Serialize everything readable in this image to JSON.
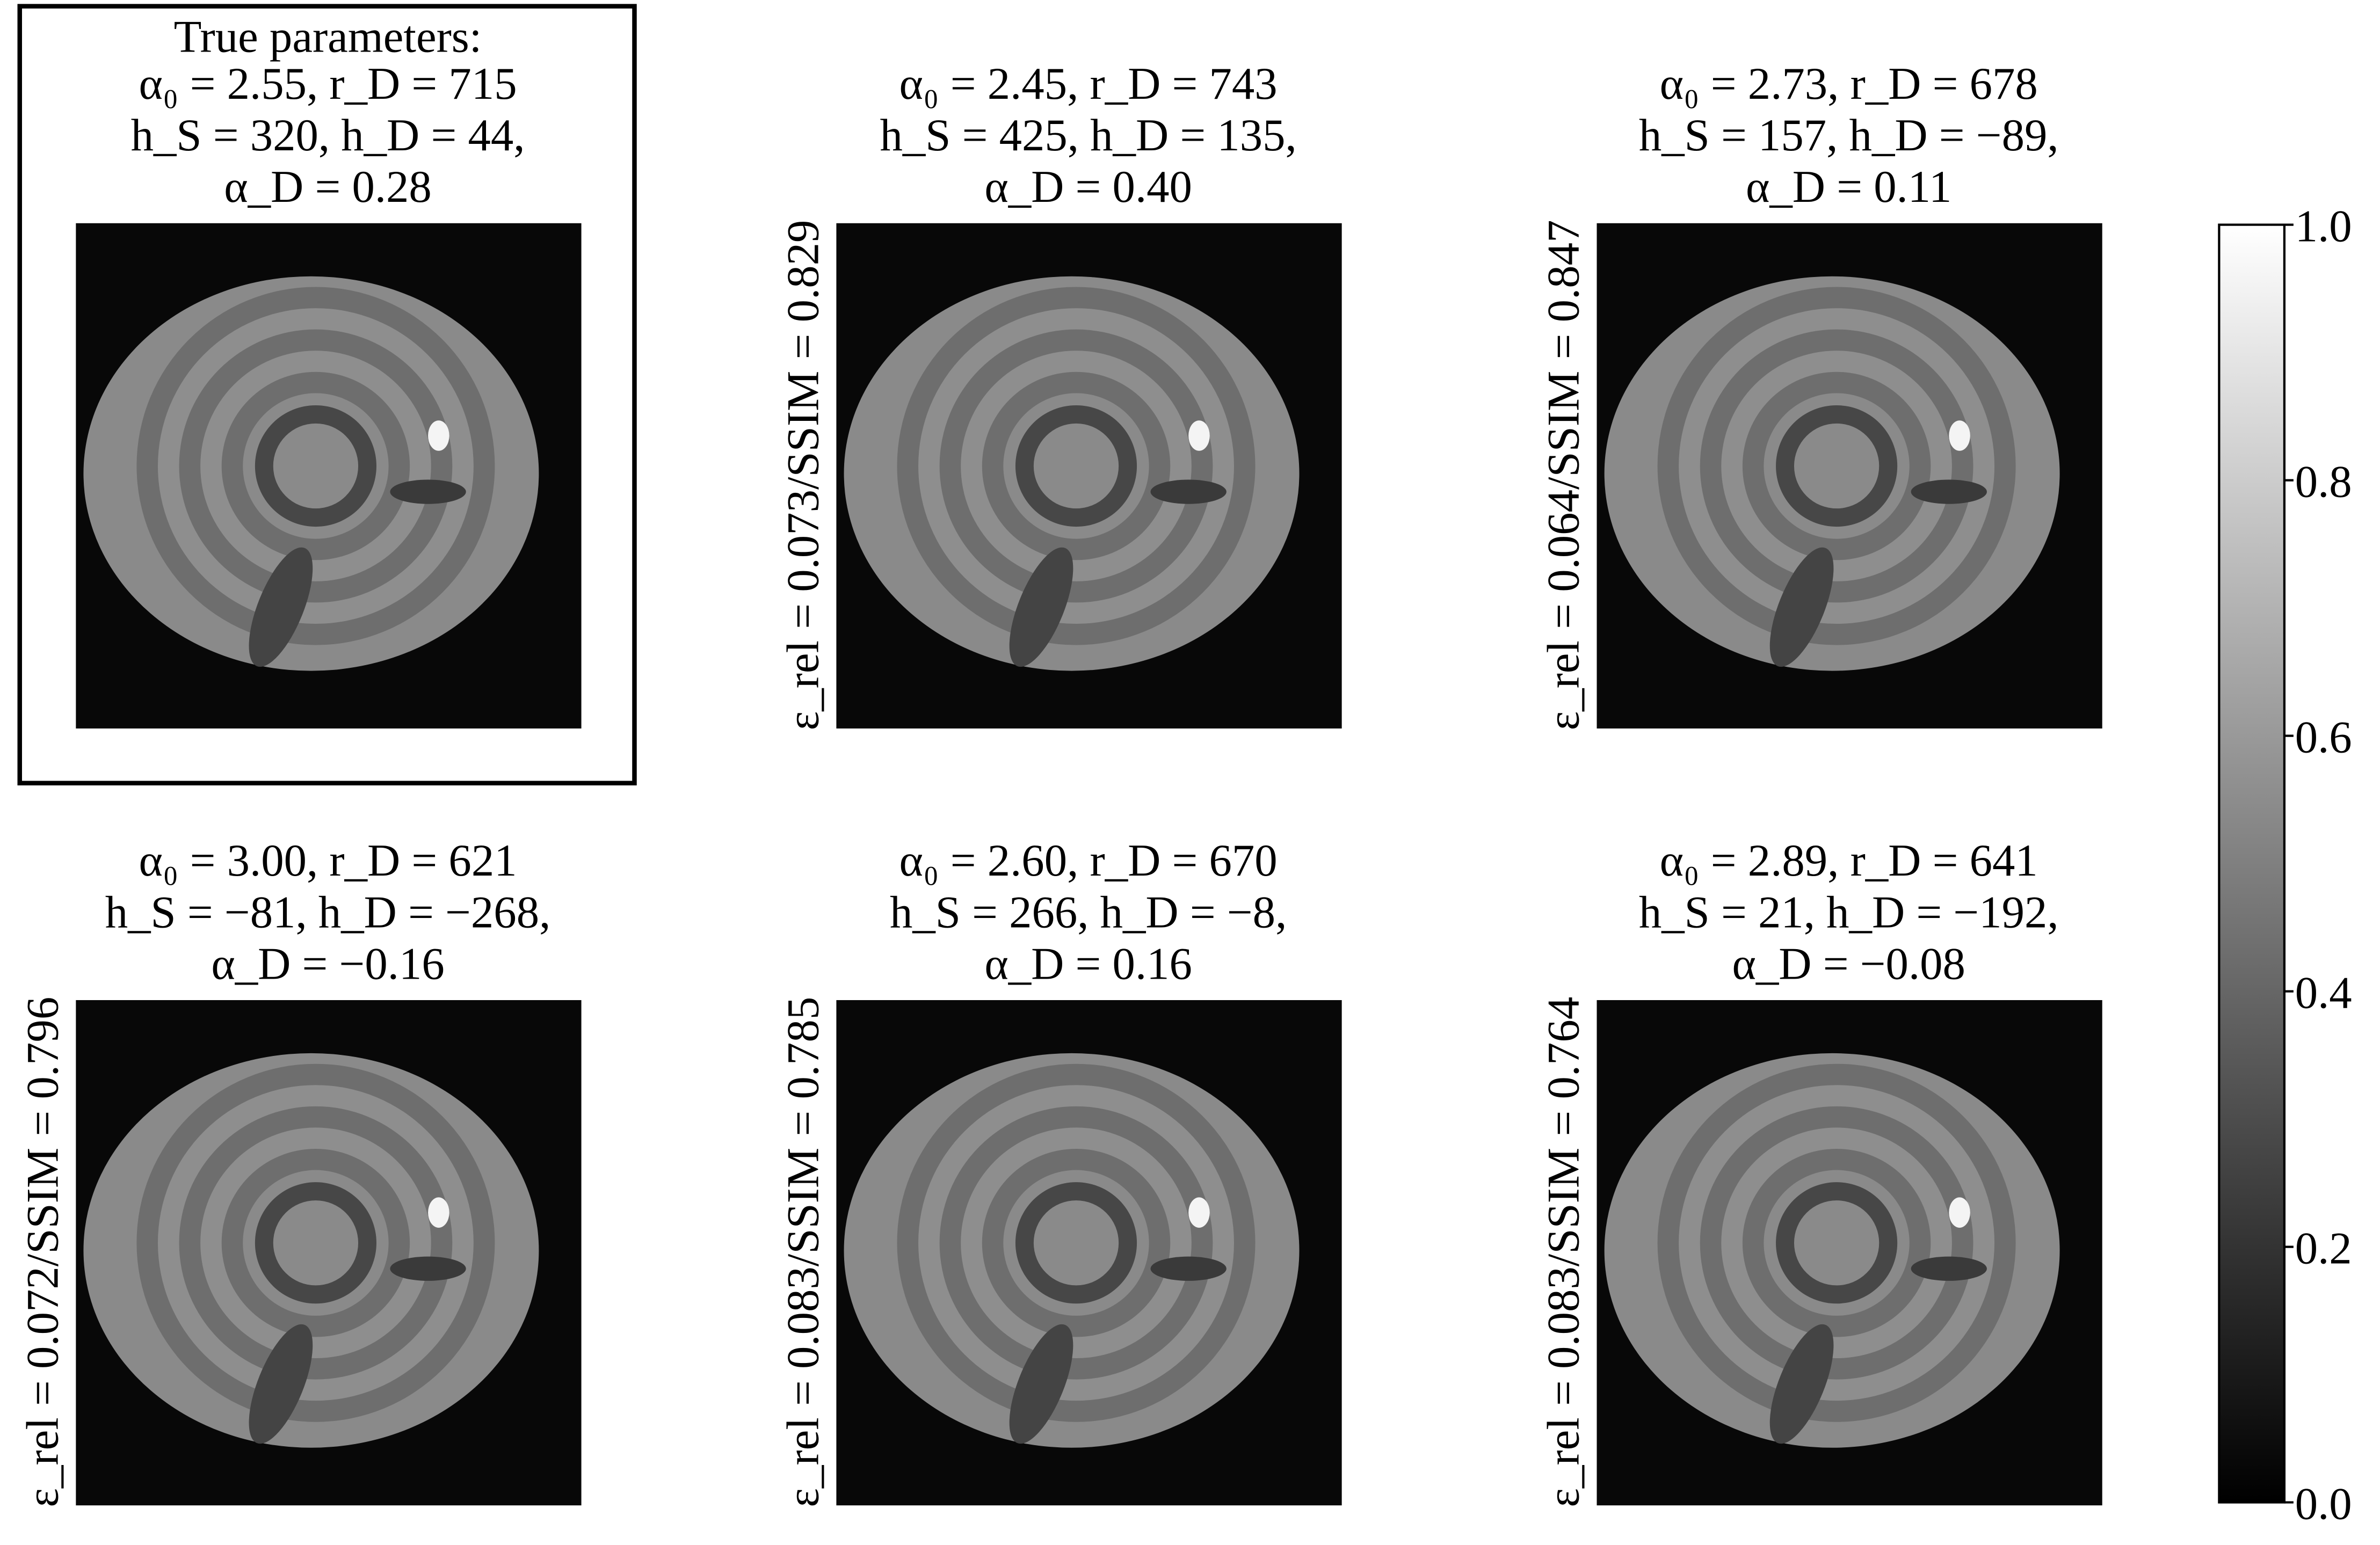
{
  "panels": [
    {
      "heading": "True parameters:",
      "lines": [
        "α₀ = 2.55, r_D = 715",
        "h_S = 320, h_D = 44,",
        "α_D = 0.28"
      ]
    },
    {
      "lines": [
        "α₀ = 2.45, r_D = 743",
        "h_S = 425, h_D = 135,",
        "α_D = 0.40"
      ],
      "metric": "ε_rel = 0.073/SSIM = 0.829"
    },
    {
      "lines": [
        "α₀ = 2.73, r_D = 678",
        "h_S = 157, h_D = −89,",
        "α_D = 0.11"
      ],
      "metric": "ε_rel = 0.064/SSIM = 0.847"
    },
    {
      "lines": [
        "α₀ = 3.00, r_D = 621",
        "h_S = −81, h_D = −268,",
        "α_D = −0.16"
      ],
      "metric": "ε_rel = 0.072/SSIM = 0.796"
    },
    {
      "lines": [
        "α₀ = 2.60, r_D = 670",
        "h_S = 266, h_D = −8,",
        "α_D = 0.16"
      ],
      "metric": "ε_rel = 0.083/SSIM = 0.785"
    },
    {
      "lines": [
        "α₀ = 2.89, r_D = 641",
        "h_S = 21, h_D = −192,",
        "α_D = −0.08"
      ],
      "metric": "ε_rel = 0.083/SSIM = 0.764"
    }
  ],
  "colorbar": {
    "ylim": [
      0,
      1
    ],
    "yticks": [
      {
        "value": 0,
        "label": "0.0"
      },
      {
        "value": 0.2,
        "label": "0.2"
      },
      {
        "value": 0.4,
        "label": "0.4"
      },
      {
        "value": 0.6,
        "label": "0.6"
      },
      {
        "value": 0.8,
        "label": "0.8"
      },
      {
        "value": 1,
        "label": "1.0"
      }
    ]
  }
}
